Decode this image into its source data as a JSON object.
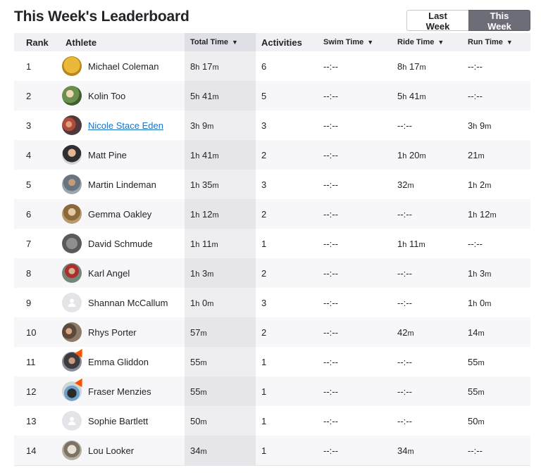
{
  "page": {
    "title": "This Week's Leaderboard"
  },
  "toggle": {
    "last_week": "Last Week",
    "this_week": "This Week",
    "active": "this_week"
  },
  "columns": {
    "rank": "Rank",
    "athlete": "Athlete",
    "total_time": "Total Time",
    "activities": "Activities",
    "swim_time": "Swim Time",
    "ride_time": "Ride Time",
    "run_time": "Run Time"
  },
  "colors": {
    "accent": "#fc5200",
    "link": "#1a73c9",
    "active_toggle": "#6d6d78"
  },
  "rows": [
    {
      "rank": "1",
      "name": "Michael Coleman",
      "total": "8h 17m",
      "activities": "6",
      "swim": "--:--",
      "ride": "8h 17m",
      "run": "--:--",
      "avatar": "photo-yellow",
      "badge": false,
      "link": false
    },
    {
      "rank": "2",
      "name": "Kolin Too",
      "total": "5h 41m",
      "activities": "5",
      "swim": "--:--",
      "ride": "5h 41m",
      "run": "--:--",
      "avatar": "photo-green",
      "badge": false,
      "link": false
    },
    {
      "rank": "3",
      "name": "Nicole Stace Eden",
      "total": "3h 9m",
      "activities": "3",
      "swim": "--:--",
      "ride": "--:--",
      "run": "3h 9m",
      "avatar": "photo-group",
      "badge": false,
      "link": true
    },
    {
      "rank": "4",
      "name": "Matt Pine",
      "total": "1h 41m",
      "activities": "2",
      "swim": "--:--",
      "ride": "1h 20m",
      "run": "21m",
      "avatar": "photo-portrait",
      "badge": false,
      "link": false
    },
    {
      "rank": "5",
      "name": "Martin Lindeman",
      "total": "1h 35m",
      "activities": "3",
      "swim": "--:--",
      "ride": "32m",
      "run": "1h 2m",
      "avatar": "photo-outdoor",
      "badge": false,
      "link": false
    },
    {
      "rank": "6",
      "name": "Gemma Oakley",
      "total": "1h 12m",
      "activities": "2",
      "swim": "--:--",
      "ride": "--:--",
      "run": "1h 12m",
      "avatar": "photo-brown",
      "badge": false,
      "link": false
    },
    {
      "rank": "7",
      "name": "David Schmude",
      "total": "1h 11m",
      "activities": "1",
      "swim": "--:--",
      "ride": "1h 11m",
      "run": "--:--",
      "avatar": "photo-grey",
      "badge": false,
      "link": false
    },
    {
      "rank": "8",
      "name": "Karl Angel",
      "total": "1h 3m",
      "activities": "2",
      "swim": "--:--",
      "ride": "--:--",
      "run": "1h 3m",
      "avatar": "photo-race",
      "badge": false,
      "link": false
    },
    {
      "rank": "9",
      "name": "Shannan McCallum",
      "total": "1h 0m",
      "activities": "3",
      "swim": "--:--",
      "ride": "--:--",
      "run": "1h 0m",
      "avatar": "default-user",
      "badge": false,
      "link": false
    },
    {
      "rank": "10",
      "name": "Rhys Porter",
      "total": "57m",
      "activities": "2",
      "swim": "--:--",
      "ride": "42m",
      "run": "14m",
      "avatar": "photo-couple",
      "badge": false,
      "link": false
    },
    {
      "rank": "11",
      "name": "Emma Gliddon",
      "total": "55m",
      "activities": "1",
      "swim": "--:--",
      "ride": "--:--",
      "run": "55m",
      "avatar": "photo-dark",
      "badge": true,
      "link": false
    },
    {
      "rank": "12",
      "name": "Fraser Menzies",
      "total": "55m",
      "activities": "1",
      "swim": "--:--",
      "ride": "--:--",
      "run": "55m",
      "avatar": "photo-car",
      "badge": true,
      "link": false
    },
    {
      "rank": "13",
      "name": "Sophie Bartlett",
      "total": "50m",
      "activities": "1",
      "swim": "--:--",
      "ride": "--:--",
      "run": "50m",
      "avatar": "default-user",
      "badge": false,
      "link": false
    },
    {
      "rank": "14",
      "name": "Lou Looker",
      "total": "34m",
      "activities": "1",
      "swim": "--:--",
      "ride": "34m",
      "run": "--:--",
      "avatar": "photo-dog",
      "badge": false,
      "link": false
    }
  ]
}
